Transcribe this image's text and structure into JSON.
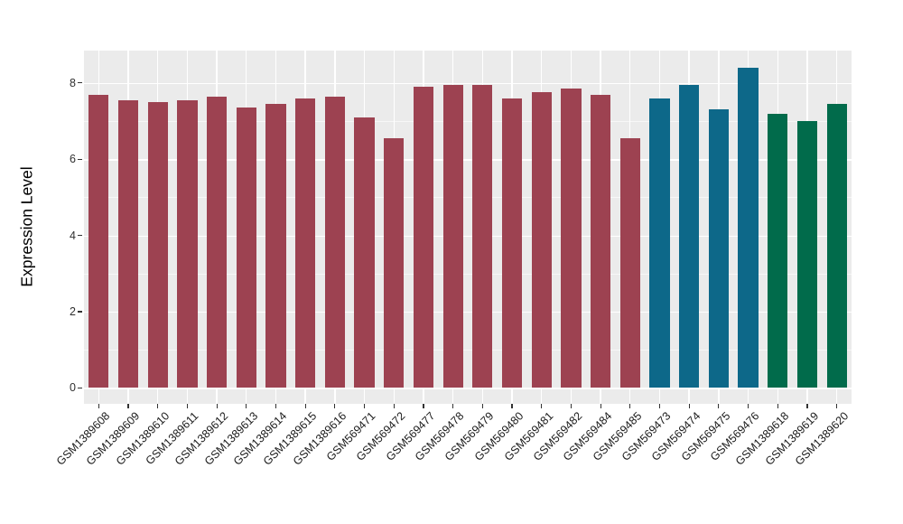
{
  "chart_data": {
    "type": "bar",
    "title": "",
    "ylabel": "Expression Level",
    "xlabel": "",
    "categories": [
      "GSM1389608",
      "GSM1389609",
      "GSM1389610",
      "GSM1389611",
      "GSM1389612",
      "GSM1389613",
      "GSM1389614",
      "GSM1389615",
      "GSM1389616",
      "GSM569471",
      "GSM569472",
      "GSM569477",
      "GSM569478",
      "GSM569479",
      "GSM569480",
      "GSM569481",
      "GSM569482",
      "GSM569484",
      "GSM569485",
      "GSM569473",
      "GSM569474",
      "GSM569475",
      "GSM569476",
      "GSM1389618",
      "GSM1389619",
      "GSM1389620"
    ],
    "values": [
      7.7,
      7.55,
      7.5,
      7.55,
      7.65,
      7.35,
      7.45,
      7.6,
      7.65,
      7.1,
      6.55,
      7.9,
      7.95,
      7.95,
      7.6,
      7.75,
      7.85,
      7.7,
      6.55,
      7.6,
      7.95,
      7.3,
      8.4,
      7.2,
      7.0,
      7.45
    ],
    "groups": [
      "maroon",
      "maroon",
      "maroon",
      "maroon",
      "maroon",
      "maroon",
      "maroon",
      "maroon",
      "maroon",
      "maroon",
      "maroon",
      "maroon",
      "maroon",
      "maroon",
      "maroon",
      "maroon",
      "maroon",
      "maroon",
      "maroon",
      "teal",
      "teal",
      "teal",
      "teal",
      "green",
      "green",
      "green"
    ],
    "group_colors": {
      "maroon": "#9D4251",
      "teal": "#0D6889",
      "green": "#016B4B"
    },
    "yticks": [
      0,
      2,
      4,
      6,
      8
    ],
    "yticks_minor": [
      1,
      3,
      5,
      7
    ],
    "ylim": [
      -0.42,
      8.85
    ],
    "x_tick_rotation_deg": 45,
    "grid": true,
    "legend": "none",
    "panel_background": "#EBEBEB",
    "grid_color": "#FFFFFF",
    "axis_text_color": "#303030",
    "axis_title_color": "#000000",
    "tick_mark_color": "#333333",
    "bar_width_fraction": 0.68
  }
}
